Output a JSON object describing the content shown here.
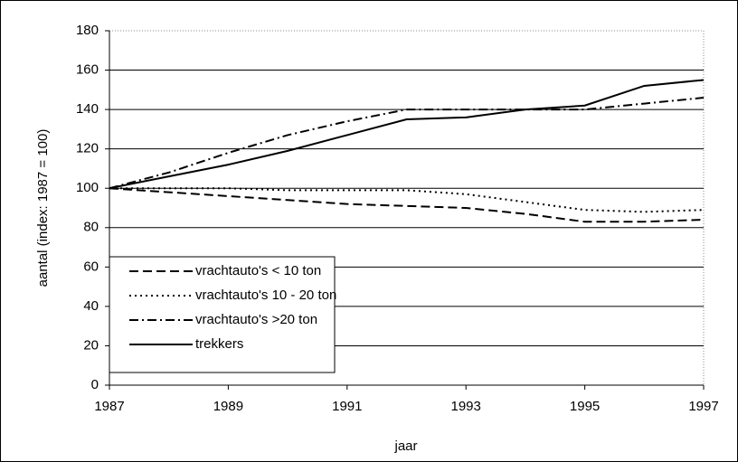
{
  "chart_data": {
    "type": "line",
    "x": [
      1987,
      1988,
      1989,
      1990,
      1991,
      1992,
      1993,
      1994,
      1995,
      1996,
      1997
    ],
    "series": [
      {
        "name": "vrachtauto's < 10 ton",
        "color": "#000000",
        "dash": "dashed",
        "values": [
          100,
          98,
          96,
          94,
          92,
          91,
          90,
          87,
          83,
          83,
          84
        ]
      },
      {
        "name": "vrachtauto's 10 - 20 ton",
        "color": "#000000",
        "dash": "dotted",
        "values": [
          100,
          100,
          100,
          99,
          99,
          99,
          97,
          93,
          89,
          88,
          89
        ]
      },
      {
        "name": "vrachtauto's >20 ton",
        "color": "#000000",
        "dash": "dashdot",
        "values": [
          100,
          108,
          118,
          127,
          134,
          140,
          140,
          140,
          140,
          143,
          146
        ]
      },
      {
        "name": "trekkers",
        "color": "#000000",
        "dash": "solid",
        "values": [
          100,
          106,
          112,
          119,
          127,
          135,
          136,
          140,
          142,
          152,
          155
        ]
      }
    ],
    "xlabel": "jaar",
    "ylabel": "aantal (index: 1987 = 100)",
    "xlim": [
      1987,
      1997
    ],
    "xticks": [
      1987,
      1989,
      1991,
      1993,
      1995,
      1997
    ],
    "ylim": [
      0,
      180
    ],
    "yticks": [
      0,
      20,
      40,
      60,
      80,
      100,
      120,
      140,
      160,
      180
    ],
    "grid": true,
    "legend": "lower left"
  }
}
